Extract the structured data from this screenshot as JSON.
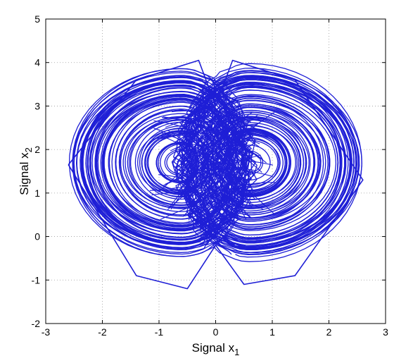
{
  "chart_data": {
    "type": "line",
    "title": "",
    "xlabel": "Signal x",
    "xlabel_subscript": "1",
    "ylabel": "Signal x",
    "ylabel_subscript": "2",
    "xlim": [
      -3,
      3
    ],
    "ylim": [
      -2,
      5
    ],
    "xticks": [
      -3,
      -2,
      -1,
      0,
      1,
      2,
      3
    ],
    "yticks": [
      -2,
      -1,
      0,
      1,
      2,
      3,
      4,
      5
    ],
    "xtick_labels": [
      "-3",
      "-2",
      "-1",
      "0",
      "1",
      "2",
      "3"
    ],
    "ytick_labels": [
      "-2",
      "-1",
      "0",
      "1",
      "2",
      "3",
      "4",
      "5"
    ],
    "grid": true,
    "legend": "none",
    "series": [
      {
        "color": "#1f1fd6",
        "description_points": [
          {
            "x": -2.6,
            "y": 1.65
          },
          {
            "x": -1.4,
            "y": 3.6
          },
          {
            "x": -0.3,
            "y": 4.05
          },
          {
            "x": 0.0,
            "y": 3.0
          },
          {
            "x": 0.3,
            "y": 4.05
          },
          {
            "x": 1.4,
            "y": 3.6
          },
          {
            "x": 2.6,
            "y": 1.3
          },
          {
            "x": 1.4,
            "y": -0.9
          },
          {
            "x": 0.5,
            "y": -1.1
          },
          {
            "x": 0.0,
            "y": -0.2
          },
          {
            "x": -0.5,
            "y": -1.2
          },
          {
            "x": -1.4,
            "y": -0.9
          },
          {
            "x": -2.6,
            "y": 1.65
          }
        ],
        "attractor_centers": [
          {
            "x": -0.6,
            "y": 1.7
          },
          {
            "x": 0.6,
            "y": 1.7
          }
        ]
      }
    ]
  }
}
